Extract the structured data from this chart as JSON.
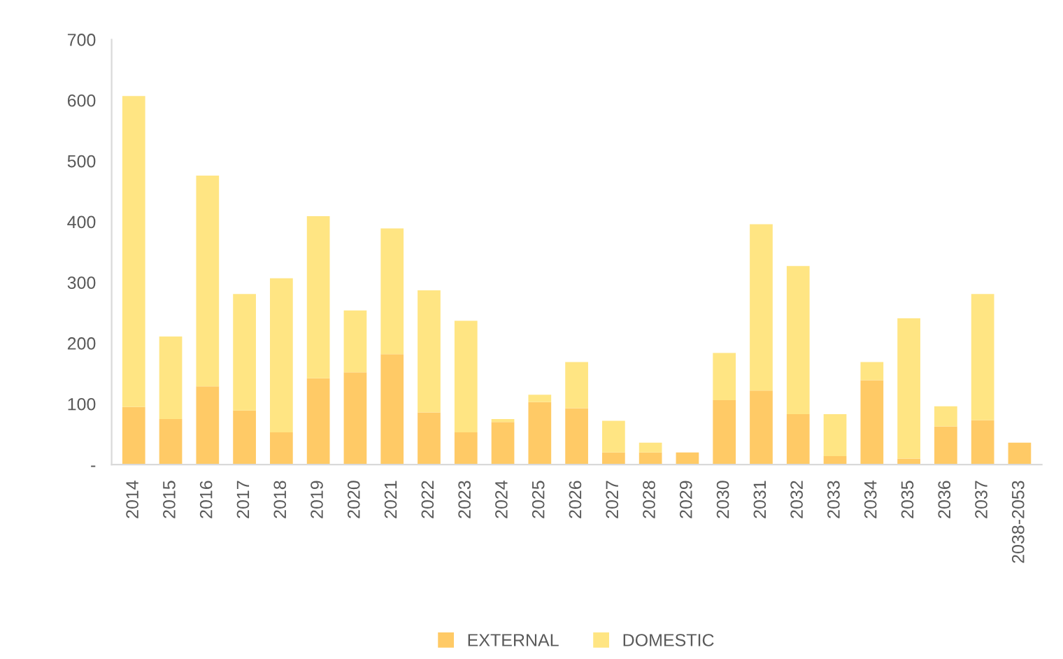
{
  "chart_data": {
    "type": "bar",
    "stacked": true,
    "categories": [
      "2014",
      "2015",
      "2016",
      "2017",
      "2018",
      "2019",
      "2020",
      "2021",
      "2022",
      "2023",
      "2024",
      "2025",
      "2026",
      "2027",
      "2028",
      "2029",
      "2030",
      "2031",
      "2032",
      "2033",
      "2034",
      "2035",
      "2036",
      "2037",
      "2038-2053"
    ],
    "series": [
      {
        "name": "EXTERNAL",
        "color": "#ffca66",
        "values": [
          95,
          75,
          129,
          89,
          53,
          142,
          152,
          182,
          86,
          53,
          70,
          103,
          93,
          20,
          20,
          20,
          106,
          122,
          83,
          14,
          139,
          10,
          63,
          73,
          36
        ]
      },
      {
        "name": "DOMESTIC",
        "color": "#ffe583",
        "values": [
          512,
          136,
          347,
          192,
          254,
          267,
          102,
          207,
          201,
          184,
          5,
          12,
          76,
          52,
          16,
          0,
          78,
          274,
          244,
          69,
          30,
          231,
          33,
          208,
          0
        ]
      }
    ],
    "ylim": [
      0,
      700
    ],
    "yticks": [
      {
        "value": 0,
        "label": "-"
      },
      100,
      200,
      300,
      400,
      500,
      600,
      700
    ],
    "grid": false,
    "legend": "bottom"
  }
}
